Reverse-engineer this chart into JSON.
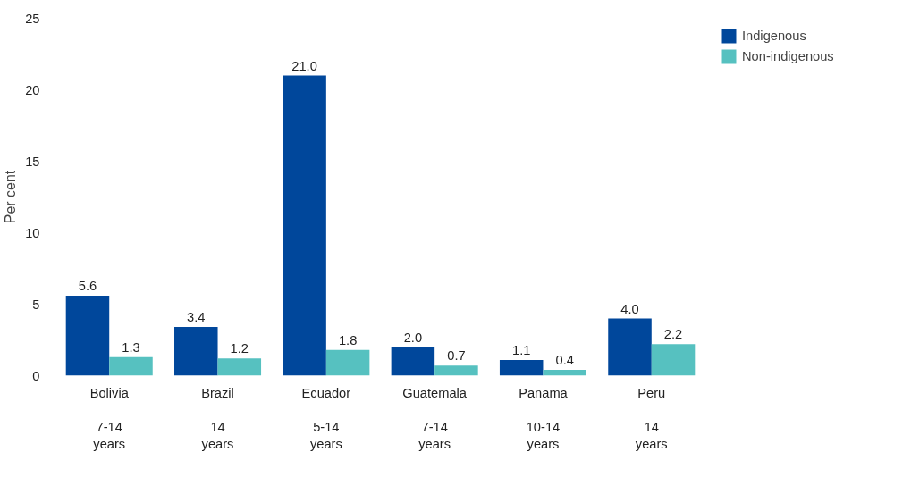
{
  "chart_data": {
    "type": "bar",
    "ylabel": "Per cent",
    "categories": [
      "Bolivia\n\n7-14\nyears",
      "Brazil\n\n14\nyears",
      "Ecuador\n\n5-14\nyears",
      "Guatemala\n\n7-14\nyears",
      "Panama\n\n10-14\nyears",
      "Peru\n\n14\nyears"
    ],
    "series": [
      {
        "name": "Indigenous",
        "color": "#00479b",
        "values": [
          5.6,
          3.4,
          21.0,
          2.0,
          1.1,
          4.0
        ],
        "value_labels": [
          "5.6",
          "3.4",
          "21.0",
          "2.0",
          "1.1",
          "4.0"
        ]
      },
      {
        "name": "Non-indigenous",
        "color": "#56c1c0",
        "values": [
          1.3,
          1.2,
          1.8,
          0.7,
          0.4,
          2.2
        ],
        "value_labels": [
          "1.3",
          "1.2",
          "1.8",
          "0.7",
          "0.4",
          "2.2"
        ]
      }
    ],
    "ylim": [
      0,
      25
    ],
    "yticks": [
      0,
      5,
      10,
      15,
      20,
      25
    ],
    "grid": false,
    "legend": "right"
  }
}
